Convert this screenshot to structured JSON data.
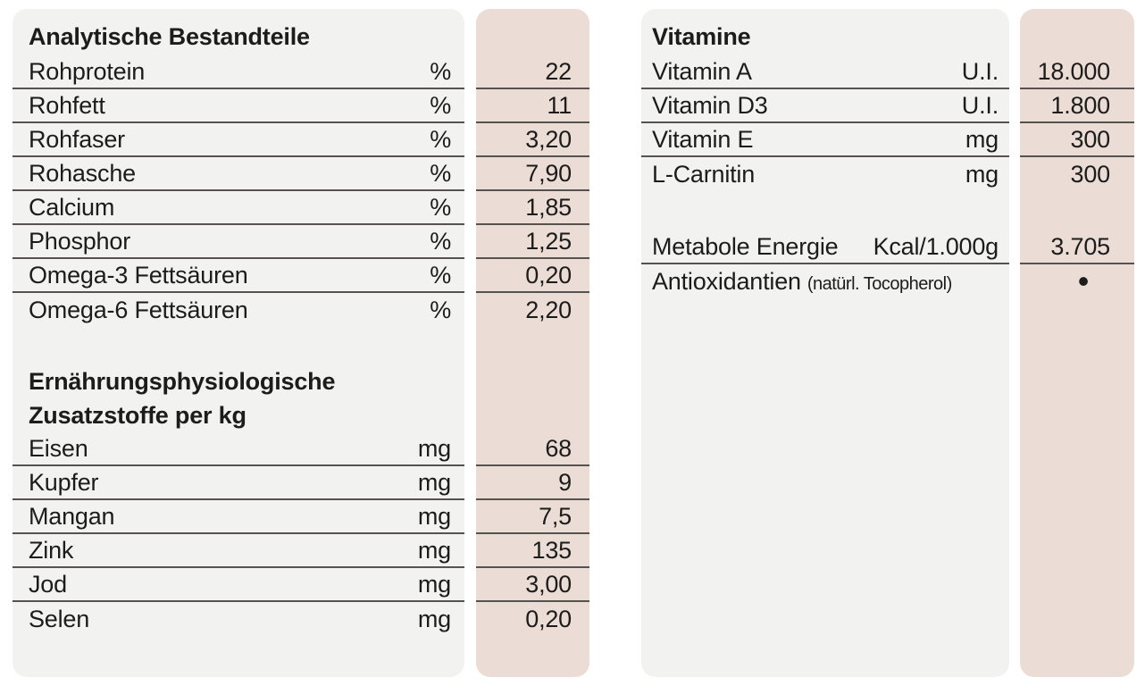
{
  "colors": {
    "page_bg": "#ffffff",
    "panel_bg": "#f2f3f1",
    "values_bg": "#ebdcd6",
    "rule": "#55524f",
    "text": "#1c1c1a"
  },
  "left_panel": {
    "blocks": [
      {
        "type": "title",
        "text": "Analytische Bestandteile"
      },
      {
        "type": "row",
        "label": "Rohprotein",
        "unit": "%",
        "value": "22",
        "rule": true
      },
      {
        "type": "row",
        "label": "Rohfett",
        "unit": "%",
        "value": "11",
        "rule": true
      },
      {
        "type": "row",
        "label": "Rohfaser",
        "unit": "%",
        "value": "3,20",
        "rule": true
      },
      {
        "type": "row",
        "label": "Rohasche",
        "unit": "%",
        "value": "7,90",
        "rule": true
      },
      {
        "type": "row",
        "label": "Calcium",
        "unit": "%",
        "value": "1,85",
        "rule": true
      },
      {
        "type": "row",
        "label": "Phosphor",
        "unit": "%",
        "value": "1,25",
        "rule": true
      },
      {
        "type": "row",
        "label": "Omega-3 Fettsäuren",
        "unit": "%",
        "value": "0,20",
        "rule": true
      },
      {
        "type": "row",
        "label": "Omega-6 Fettsäuren",
        "unit": "%",
        "value": "2,20",
        "rule": false
      },
      {
        "type": "spacer"
      },
      {
        "type": "subtitle",
        "text": "Ernährungsphysiologische"
      },
      {
        "type": "subtitle",
        "text": "Zusatzstoffe per kg"
      },
      {
        "type": "row",
        "label": "Eisen",
        "unit": "mg",
        "value": "68",
        "rule": true
      },
      {
        "type": "row",
        "label": "Kupfer",
        "unit": "mg",
        "value": "9",
        "rule": true
      },
      {
        "type": "row",
        "label": "Mangan",
        "unit": "mg",
        "value": "7,5",
        "rule": true
      },
      {
        "type": "row",
        "label": "Zink",
        "unit": "mg",
        "value": "135",
        "rule": true
      },
      {
        "type": "row",
        "label": "Jod",
        "unit": "mg",
        "value": "3,00",
        "rule": true
      },
      {
        "type": "row",
        "label": "Selen",
        "unit": "mg",
        "value": "0,20",
        "rule": false
      }
    ]
  },
  "right_panel": {
    "blocks": [
      {
        "type": "title",
        "text": "Vitamine"
      },
      {
        "type": "row",
        "label": "Vitamin A",
        "unit": "U.I.",
        "value": "18.000",
        "rule": true
      },
      {
        "type": "row",
        "label": "Vitamin D3",
        "unit": "U.I.",
        "value": "1.800",
        "rule": true
      },
      {
        "type": "row",
        "label": "Vitamin E",
        "unit": "mg",
        "value": "300",
        "rule": true
      },
      {
        "type": "row",
        "label": "L-Carnitin",
        "unit": "mg",
        "value": "300",
        "rule": false
      },
      {
        "type": "spacer"
      },
      {
        "type": "row",
        "label": "Metabole Energie",
        "unit": "Kcal/1.000g",
        "value": "3.705",
        "rule": true
      },
      {
        "type": "row",
        "label": "Antioxidantien",
        "note": "(natürl. Tocopherol)",
        "unit": "",
        "value": "•",
        "value_style": "bullet",
        "rule": false
      }
    ]
  }
}
